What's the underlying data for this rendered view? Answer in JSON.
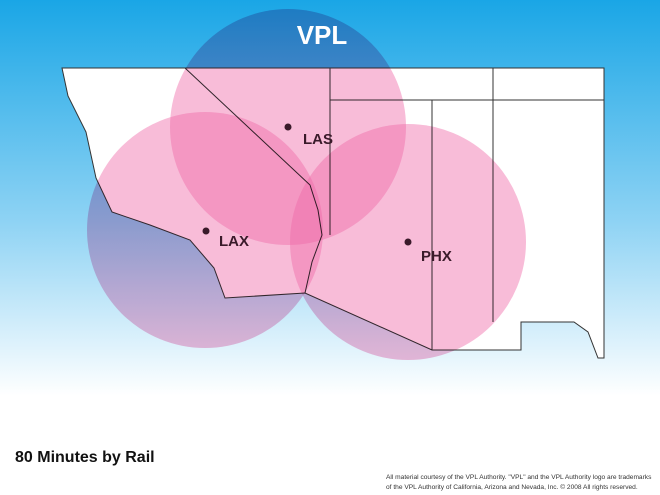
{
  "title": "VPL",
  "cities": [
    {
      "label": "LAS"
    },
    {
      "label": "LAX"
    },
    {
      "label": "PHX"
    }
  ],
  "caption": "80 Minutes by Rail",
  "footer": [
    "All material courtesy of the VPL Authority.  \"VPL\" and the VPL Authority logo are trademarks",
    "of the VPL Authority of California, Arizona and Nevada, Inc. © 2008 All rights reserved."
  ]
}
